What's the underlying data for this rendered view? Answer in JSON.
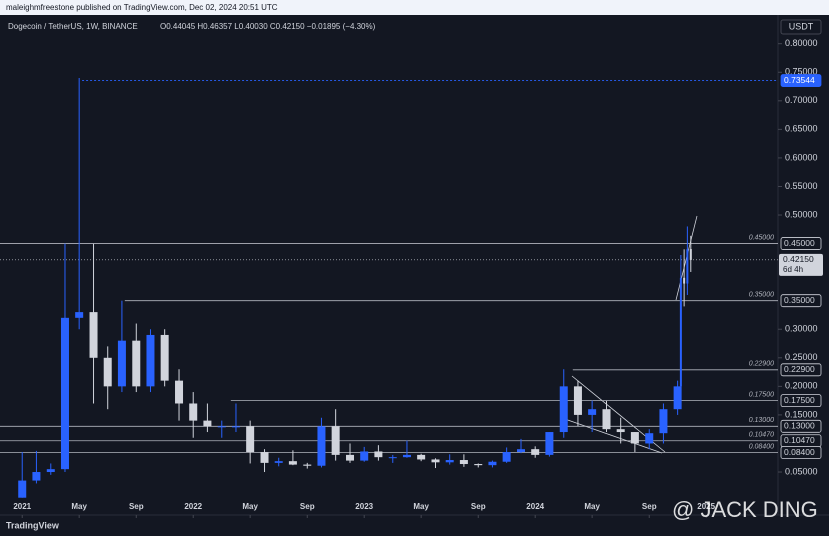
{
  "header": {
    "publisher": "maleighmfreestone published on TradingView.com, Dec 02, 2024 20:51 UTC"
  },
  "chart_data": {
    "type": "candlestick",
    "title": "Dogecoin / TetherUS, 1W, BINANCE",
    "legend_text": "O0.44045 H0.46357 L0.40030 C0.42150 −0.01895 (−4.30%)",
    "currency": "USDT",
    "up_color": "#2962ff",
    "down_color": "#d1d4dc",
    "x": [
      2021.0,
      2021.083,
      2021.167,
      2021.25,
      2021.333,
      2021.417,
      2021.5,
      2021.583,
      2021.667,
      2021.75,
      2021.833,
      2021.917,
      2022.0,
      2022.083,
      2022.167,
      2022.25,
      2022.333,
      2022.417,
      2022.5,
      2022.583,
      2022.667,
      2022.75,
      2022.833,
      2022.917,
      2023.0,
      2023.083,
      2023.167,
      2023.25,
      2023.333,
      2023.417,
      2023.5,
      2023.583,
      2023.667,
      2023.75,
      2023.833,
      2023.917,
      2024.0,
      2024.083,
      2024.167,
      2024.25,
      2024.333,
      2024.417,
      2024.5,
      2024.583,
      2024.667,
      2024.75,
      2024.833,
      2024.852,
      2024.871,
      2024.89,
      2024.91
    ],
    "open": [
      0.005,
      0.035,
      0.05,
      0.055,
      0.32,
      0.33,
      0.25,
      0.2,
      0.28,
      0.2,
      0.29,
      0.21,
      0.17,
      0.14,
      0.13,
      0.13,
      0.13,
      0.085,
      0.066,
      0.069,
      0.063,
      0.061,
      0.13,
      0.08,
      0.07,
      0.086,
      0.076,
      0.076,
      0.08,
      0.072,
      0.067,
      0.071,
      0.064,
      0.062,
      0.068,
      0.085,
      0.09,
      0.08,
      0.12,
      0.2,
      0.15,
      0.16,
      0.125,
      0.12,
      0.1,
      0.118,
      0.16,
      0.2,
      0.39,
      0.38,
      0.44045
    ],
    "high": [
      0.085,
      0.087,
      0.065,
      0.45,
      0.74,
      0.45,
      0.27,
      0.35,
      0.31,
      0.3,
      0.3,
      0.23,
      0.19,
      0.17,
      0.14,
      0.17,
      0.14,
      0.09,
      0.075,
      0.088,
      0.066,
      0.145,
      0.16,
      0.1,
      0.094,
      0.097,
      0.08,
      0.105,
      0.082,
      0.074,
      0.081,
      0.081,
      0.065,
      0.07,
      0.093,
      0.108,
      0.095,
      0.12,
      0.23,
      0.21,
      0.175,
      0.175,
      0.145,
      0.12,
      0.125,
      0.17,
      0.21,
      0.43,
      0.44,
      0.48,
      0.46357
    ],
    "low": [
      0.005,
      0.03,
      0.045,
      0.05,
      0.3,
      0.17,
      0.16,
      0.19,
      0.19,
      0.19,
      0.2,
      0.14,
      0.11,
      0.12,
      0.11,
      0.12,
      0.065,
      0.05,
      0.06,
      0.062,
      0.056,
      0.058,
      0.07,
      0.066,
      0.068,
      0.07,
      0.066,
      0.075,
      0.069,
      0.057,
      0.063,
      0.059,
      0.058,
      0.058,
      0.066,
      0.083,
      0.075,
      0.077,
      0.11,
      0.13,
      0.12,
      0.12,
      0.1,
      0.085,
      0.09,
      0.1,
      0.15,
      0.2,
      0.34,
      0.36,
      0.4003
    ],
    "close": [
      0.035,
      0.05,
      0.055,
      0.32,
      0.33,
      0.25,
      0.2,
      0.28,
      0.2,
      0.29,
      0.21,
      0.17,
      0.14,
      0.13,
      0.13,
      0.13,
      0.085,
      0.066,
      0.069,
      0.063,
      0.061,
      0.13,
      0.08,
      0.07,
      0.086,
      0.076,
      0.076,
      0.08,
      0.072,
      0.067,
      0.071,
      0.064,
      0.062,
      0.068,
      0.085,
      0.09,
      0.08,
      0.12,
      0.2,
      0.15,
      0.16,
      0.125,
      0.12,
      0.1,
      0.118,
      0.16,
      0.2,
      0.39,
      0.38,
      0.44,
      0.4215
    ],
    "xlim": [
      2020.87,
      2025.42
    ],
    "ylim": [
      0.001,
      0.845
    ],
    "xticks": [
      {
        "value": 2021.0,
        "label": "2021"
      },
      {
        "value": 2021.333,
        "label": "May"
      },
      {
        "value": 2021.667,
        "label": "Sep"
      },
      {
        "value": 2022.0,
        "label": "2022"
      },
      {
        "value": 2022.333,
        "label": "May"
      },
      {
        "value": 2022.667,
        "label": "Sep"
      },
      {
        "value": 2023.0,
        "label": "2023"
      },
      {
        "value": 2023.333,
        "label": "May"
      },
      {
        "value": 2023.667,
        "label": "Sep"
      },
      {
        "value": 2024.0,
        "label": "2024"
      },
      {
        "value": 2024.333,
        "label": "May"
      },
      {
        "value": 2024.667,
        "label": "Sep"
      },
      {
        "value": 2025.0,
        "label": "2025"
      }
    ],
    "yticks": [
      {
        "value": 0.8,
        "label": "0.80000"
      },
      {
        "value": 0.75,
        "label": "0.75000"
      },
      {
        "value": 0.7,
        "label": "0.70000"
      },
      {
        "value": 0.65,
        "label": "0.65000"
      },
      {
        "value": 0.6,
        "label": "0.60000"
      },
      {
        "value": 0.55,
        "label": "0.55000"
      },
      {
        "value": 0.5,
        "label": "0.50000"
      },
      {
        "value": 0.3,
        "label": "0.30000"
      },
      {
        "value": 0.25,
        "label": "0.25000"
      },
      {
        "value": 0.2,
        "label": "0.20000"
      },
      {
        "value": 0.15,
        "label": "0.15000"
      },
      {
        "value": 0.05,
        "label": "0.05000"
      }
    ],
    "levels": [
      {
        "value": 0.73544,
        "label": "0.73544",
        "from": 2021.35,
        "highlight": true
      },
      {
        "value": 0.45,
        "label": "0.45000",
        "from": 2020.87
      },
      {
        "value": 0.35,
        "label": "0.35000",
        "from": 2021.6
      },
      {
        "value": 0.229,
        "label": "0.22900",
        "from": 2024.22
      },
      {
        "value": 0.175,
        "label": "0.17500",
        "from": 2022.22
      },
      {
        "value": 0.13,
        "label": "0.13000",
        "from": 2020.87
      },
      {
        "value": 0.1047,
        "label": "0.10470",
        "from": 2020.87
      },
      {
        "value": 0.084,
        "label": "0.08400",
        "from": 2020.87
      }
    ],
    "last_price": {
      "value": 0.4215,
      "label": "0.42150",
      "countdown": "6d 4h"
    }
  },
  "footer": {
    "logo": "TradingView",
    "watermark": "@ JACK DING"
  }
}
